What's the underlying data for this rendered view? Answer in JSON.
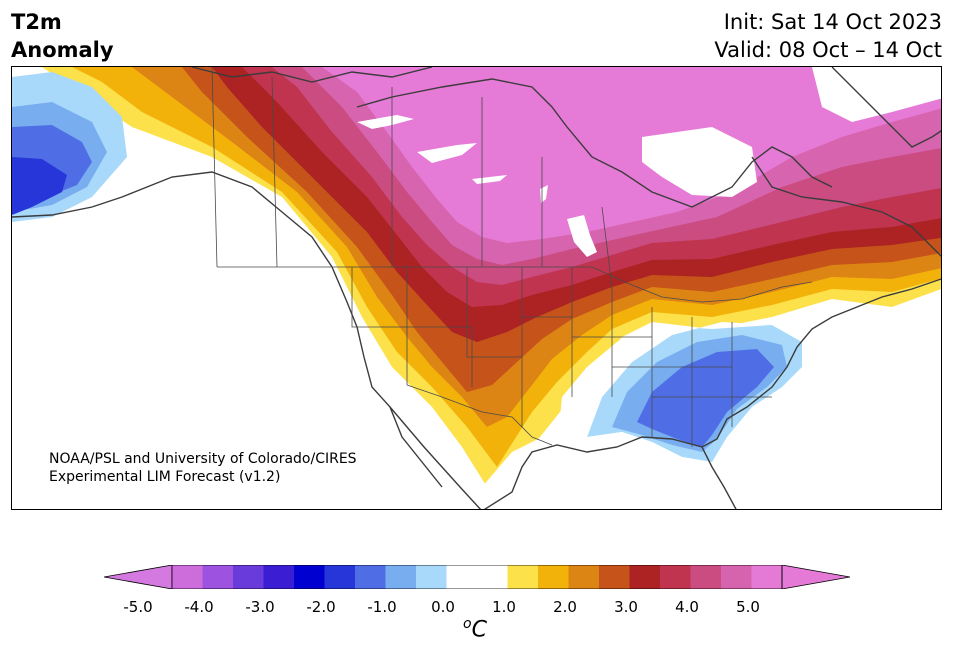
{
  "title": {
    "line1": "T2m",
    "line2": "Anomaly",
    "init": "Init: Sat 14 Oct 2023",
    "valid": "Valid: 08 Oct – 14 Oct"
  },
  "credit": {
    "line1": "NOAA/PSL and University of Colorado/CIRES",
    "line2": "Experimental LIM Forecast (v1.2)"
  },
  "colorbar": {
    "unit_superscript": "o",
    "unit_base": "C",
    "ticks": [
      "-5.0",
      "-4.0",
      "-3.0",
      "-2.0",
      "-1.0",
      "0.0",
      "1.0",
      "2.0",
      "3.0",
      "4.0",
      "5.0"
    ],
    "colors": [
      "#cc6ddb",
      "#9e52e0",
      "#6a3bdb",
      "#3b1ed4",
      "#0000d0",
      "#2636d9",
      "#4f6ee6",
      "#78aef0",
      "#a9d9fa",
      "#ffffff",
      "#ffffff",
      "#fde14a",
      "#f2b20a",
      "#dc8414",
      "#c6531a",
      "#ad2223",
      "#c0344f",
      "#ca4c80",
      "#d663ae",
      "#e57ad6"
    ],
    "under_color": "#d479e0",
    "over_color": "#e57ad6"
  },
  "map": {
    "colors": {
      "warm5": "#e67ad7",
      "warm45": "#d664ae",
      "warm4": "#ca4c80",
      "warm35": "#c0344f",
      "warm3": "#ad2223",
      "warm25": "#c6531a",
      "warm2": "#dc8414",
      "warm15": "#f2b20a",
      "warm1": "#fde14a",
      "cool1": "#a9d9fa",
      "cool15": "#78aef0",
      "cool2": "#4f6ee6",
      "cool25": "#2636d9",
      "coast": "#3c3c3c"
    }
  }
}
